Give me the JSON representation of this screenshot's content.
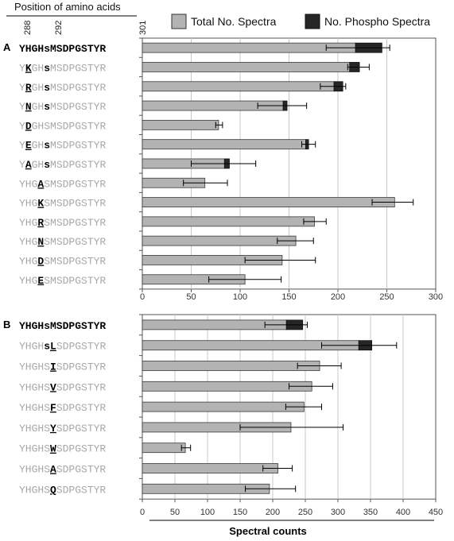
{
  "header": {
    "title": "Position of amino acids",
    "positions": [
      "288",
      "292",
      "301"
    ]
  },
  "legend": {
    "total_label": "Total No. Spectra",
    "phospho_label": "No. Phospho Spectra",
    "total_color": "#b3b3b3",
    "phospho_color": "#262626"
  },
  "colors": {
    "grid": "#c8c8c8",
    "axis": "#555555",
    "faded": "#a8a8a8",
    "bold": "#000000"
  },
  "chart_data": [
    {
      "type": "bar",
      "orientation": "horizontal",
      "panel_label": "A",
      "xlim": [
        0,
        300
      ],
      "xticks": [
        0,
        50,
        100,
        150,
        200,
        250,
        300
      ],
      "grid": true,
      "legend_position": "top",
      "categories": [
        [
          {
            "t": "YHGHsMSDPGSTYR",
            "s": "bold"
          }
        ],
        [
          {
            "t": "Y",
            "s": "faded"
          },
          {
            "t": "K",
            "s": "mut"
          },
          {
            "t": "GH",
            "s": "faded"
          },
          {
            "t": "s",
            "s": "bold"
          },
          {
            "t": "MSDPGSTYR",
            "s": "faded"
          }
        ],
        [
          {
            "t": "Y",
            "s": "faded"
          },
          {
            "t": "R",
            "s": "mut"
          },
          {
            "t": "GH",
            "s": "faded"
          },
          {
            "t": "s",
            "s": "bold"
          },
          {
            "t": "MSDPGSTYR",
            "s": "faded"
          }
        ],
        [
          {
            "t": "Y",
            "s": "faded"
          },
          {
            "t": "N",
            "s": "mut"
          },
          {
            "t": "GH",
            "s": "faded"
          },
          {
            "t": "s",
            "s": "bold"
          },
          {
            "t": "MSDPGSTYR",
            "s": "faded"
          }
        ],
        [
          {
            "t": "Y",
            "s": "faded"
          },
          {
            "t": "D",
            "s": "mut"
          },
          {
            "t": "GHSMSDPGSTYR",
            "s": "faded"
          }
        ],
        [
          {
            "t": "Y",
            "s": "faded"
          },
          {
            "t": "E",
            "s": "mut"
          },
          {
            "t": "GH",
            "s": "faded"
          },
          {
            "t": "s",
            "s": "bold"
          },
          {
            "t": "MSDPGSTYR",
            "s": "faded"
          }
        ],
        [
          {
            "t": "Y",
            "s": "faded"
          },
          {
            "t": "A",
            "s": "mut"
          },
          {
            "t": "GH",
            "s": "faded"
          },
          {
            "t": "s",
            "s": "bold"
          },
          {
            "t": "MSDPGSTYR",
            "s": "faded"
          }
        ],
        [
          {
            "t": "YHG",
            "s": "faded"
          },
          {
            "t": "A",
            "s": "mut"
          },
          {
            "t": "SMSDPGSTYR",
            "s": "faded"
          }
        ],
        [
          {
            "t": "YHG",
            "s": "faded"
          },
          {
            "t": "K",
            "s": "mut"
          },
          {
            "t": "SMSDPGSTYR",
            "s": "faded"
          }
        ],
        [
          {
            "t": "YHG",
            "s": "faded"
          },
          {
            "t": "R",
            "s": "mut"
          },
          {
            "t": "SMSDPGSTYR",
            "s": "faded"
          }
        ],
        [
          {
            "t": "YHG",
            "s": "faded"
          },
          {
            "t": "N",
            "s": "mut"
          },
          {
            "t": "SMSDPGSTYR",
            "s": "faded"
          }
        ],
        [
          {
            "t": "YHG",
            "s": "faded"
          },
          {
            "t": "D",
            "s": "mut"
          },
          {
            "t": "SMSDPGSTYR",
            "s": "faded"
          }
        ],
        [
          {
            "t": "YHG",
            "s": "faded"
          },
          {
            "t": "E",
            "s": "mut"
          },
          {
            "t": "SMSDPGSTYR",
            "s": "faded"
          }
        ]
      ],
      "series": [
        {
          "name": "Total No. Spectra",
          "values": [
            245,
            222,
            205,
            148,
            78,
            170,
            89,
            64,
            258,
            176,
            157,
            143,
            105
          ]
        },
        {
          "name": "No. Phospho Spectra",
          "values": [
            27,
            10,
            9,
            4,
            0,
            3,
            5,
            0,
            0,
            0,
            0,
            0,
            0
          ]
        }
      ],
      "error_low": [
        188,
        210,
        182,
        118,
        75,
        163,
        50,
        42,
        235,
        165,
        138,
        105,
        68
      ],
      "error_high": [
        253,
        232,
        208,
        168,
        82,
        177,
        116,
        87,
        277,
        188,
        175,
        177,
        142
      ]
    },
    {
      "type": "bar",
      "orientation": "horizontal",
      "panel_label": "B",
      "xlim": [
        0,
        450
      ],
      "xticks": [
        0,
        50,
        100,
        150,
        200,
        250,
        300,
        350,
        400,
        450
      ],
      "grid": true,
      "xlabel": "Spectral counts",
      "categories": [
        [
          {
            "t": "YHGHsMSDPGSTYR",
            "s": "bold"
          }
        ],
        [
          {
            "t": "YHGH",
            "s": "faded"
          },
          {
            "t": "s",
            "s": "bold"
          },
          {
            "t": "L",
            "s": "mut"
          },
          {
            "t": "SDPGSTYR",
            "s": "faded"
          }
        ],
        [
          {
            "t": "YHGHS",
            "s": "faded"
          },
          {
            "t": "I",
            "s": "mut"
          },
          {
            "t": "SDPGSTYR",
            "s": "faded"
          }
        ],
        [
          {
            "t": "YHGHS",
            "s": "faded"
          },
          {
            "t": "V",
            "s": "mut"
          },
          {
            "t": "SDPGSTYR",
            "s": "faded"
          }
        ],
        [
          {
            "t": "YHGHS",
            "s": "faded"
          },
          {
            "t": "F",
            "s": "mut"
          },
          {
            "t": "SDPGSTYR",
            "s": "faded"
          }
        ],
        [
          {
            "t": "YHGHS",
            "s": "faded"
          },
          {
            "t": "Y",
            "s": "mut"
          },
          {
            "t": "SDPGSTYR",
            "s": "faded"
          }
        ],
        [
          {
            "t": "YHGHS",
            "s": "faded"
          },
          {
            "t": "W",
            "s": "mut"
          },
          {
            "t": "SDPGSTYR",
            "s": "faded"
          }
        ],
        [
          {
            "t": "YHGHS",
            "s": "faded"
          },
          {
            "t": "A",
            "s": "mut"
          },
          {
            "t": "SDPGSTYR",
            "s": "faded"
          }
        ],
        [
          {
            "t": "YHGHS",
            "s": "faded"
          },
          {
            "t": "Q",
            "s": "mut"
          },
          {
            "t": "SDPGSTYR",
            "s": "faded"
          }
        ]
      ],
      "series": [
        {
          "name": "Total No. Spectra",
          "values": [
            246,
            352,
            272,
            260,
            248,
            228,
            66,
            208,
            195
          ]
        },
        {
          "name": "No. Phospho Spectra",
          "values": [
            25,
            20,
            0,
            0,
            0,
            0,
            0,
            0,
            0
          ]
        }
      ],
      "error_low": [
        188,
        275,
        238,
        225,
        220,
        150,
        60,
        185,
        158
      ],
      "error_high": [
        253,
        390,
        305,
        292,
        275,
        308,
        74,
        230,
        235
      ]
    }
  ]
}
